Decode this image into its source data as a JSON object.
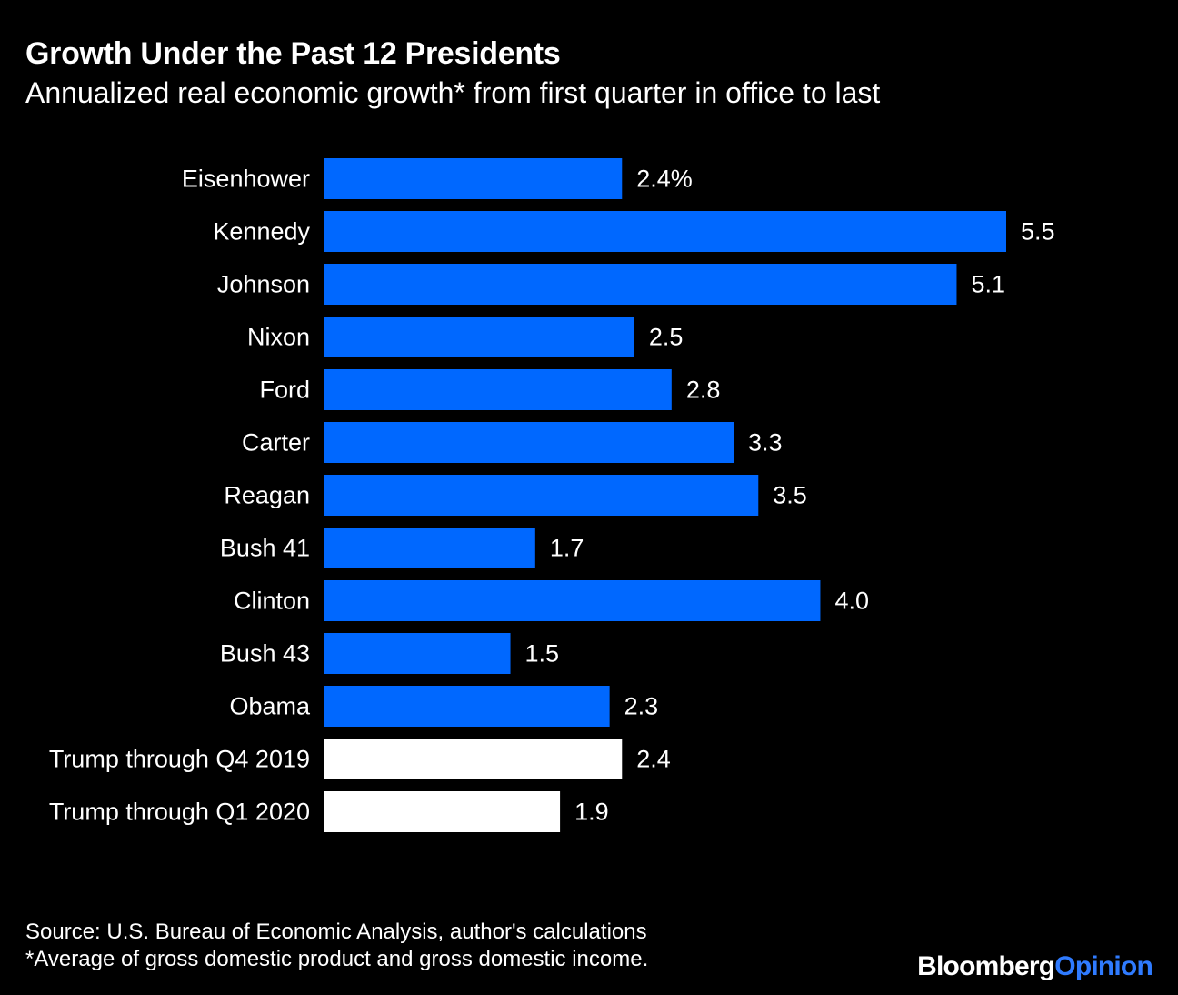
{
  "header": {
    "title": "Growth Under the Past 12 Presidents",
    "subtitle": "Annualized real economic growth* from first quarter in office to last"
  },
  "footer": {
    "source": "Source: U.S. Bureau of Economic Analysis, author's calculations",
    "note": "*Average of gross domestic product and gross domestic income."
  },
  "logo": {
    "brand": "Bloomberg",
    "section": "Opinion"
  },
  "colors": {
    "background": "#000000",
    "bar_primary": "#0068ff",
    "bar_highlight": "#ffffff",
    "logo_accent": "#2f7bff"
  },
  "chart_data": {
    "type": "bar",
    "orientation": "horizontal",
    "title": "Growth Under the Past 12 Presidents",
    "subtitle": "Annualized real economic growth* from first quarter in office to last",
    "xlabel": "",
    "ylabel": "",
    "xlim": [
      0,
      5.5
    ],
    "grid": false,
    "categories": [
      "Eisenhower",
      "Kennedy",
      "Johnson",
      "Nixon",
      "Ford",
      "Carter",
      "Reagan",
      "Bush 41",
      "Clinton",
      "Bush 43",
      "Obama",
      "Trump through Q4 2019",
      "Trump through Q1 2020"
    ],
    "values": [
      2.4,
      5.5,
      5.1,
      2.5,
      2.8,
      3.3,
      3.5,
      1.7,
      4.0,
      1.5,
      2.3,
      2.4,
      1.9
    ],
    "value_labels": [
      "2.4%",
      "5.5",
      "5.1",
      "2.5",
      "2.8",
      "3.3",
      "3.5",
      "1.7",
      "4.0",
      "1.5",
      "2.3",
      "2.4",
      "1.9"
    ],
    "highlighted": [
      false,
      false,
      false,
      false,
      false,
      false,
      false,
      false,
      false,
      false,
      false,
      true,
      true
    ]
  }
}
